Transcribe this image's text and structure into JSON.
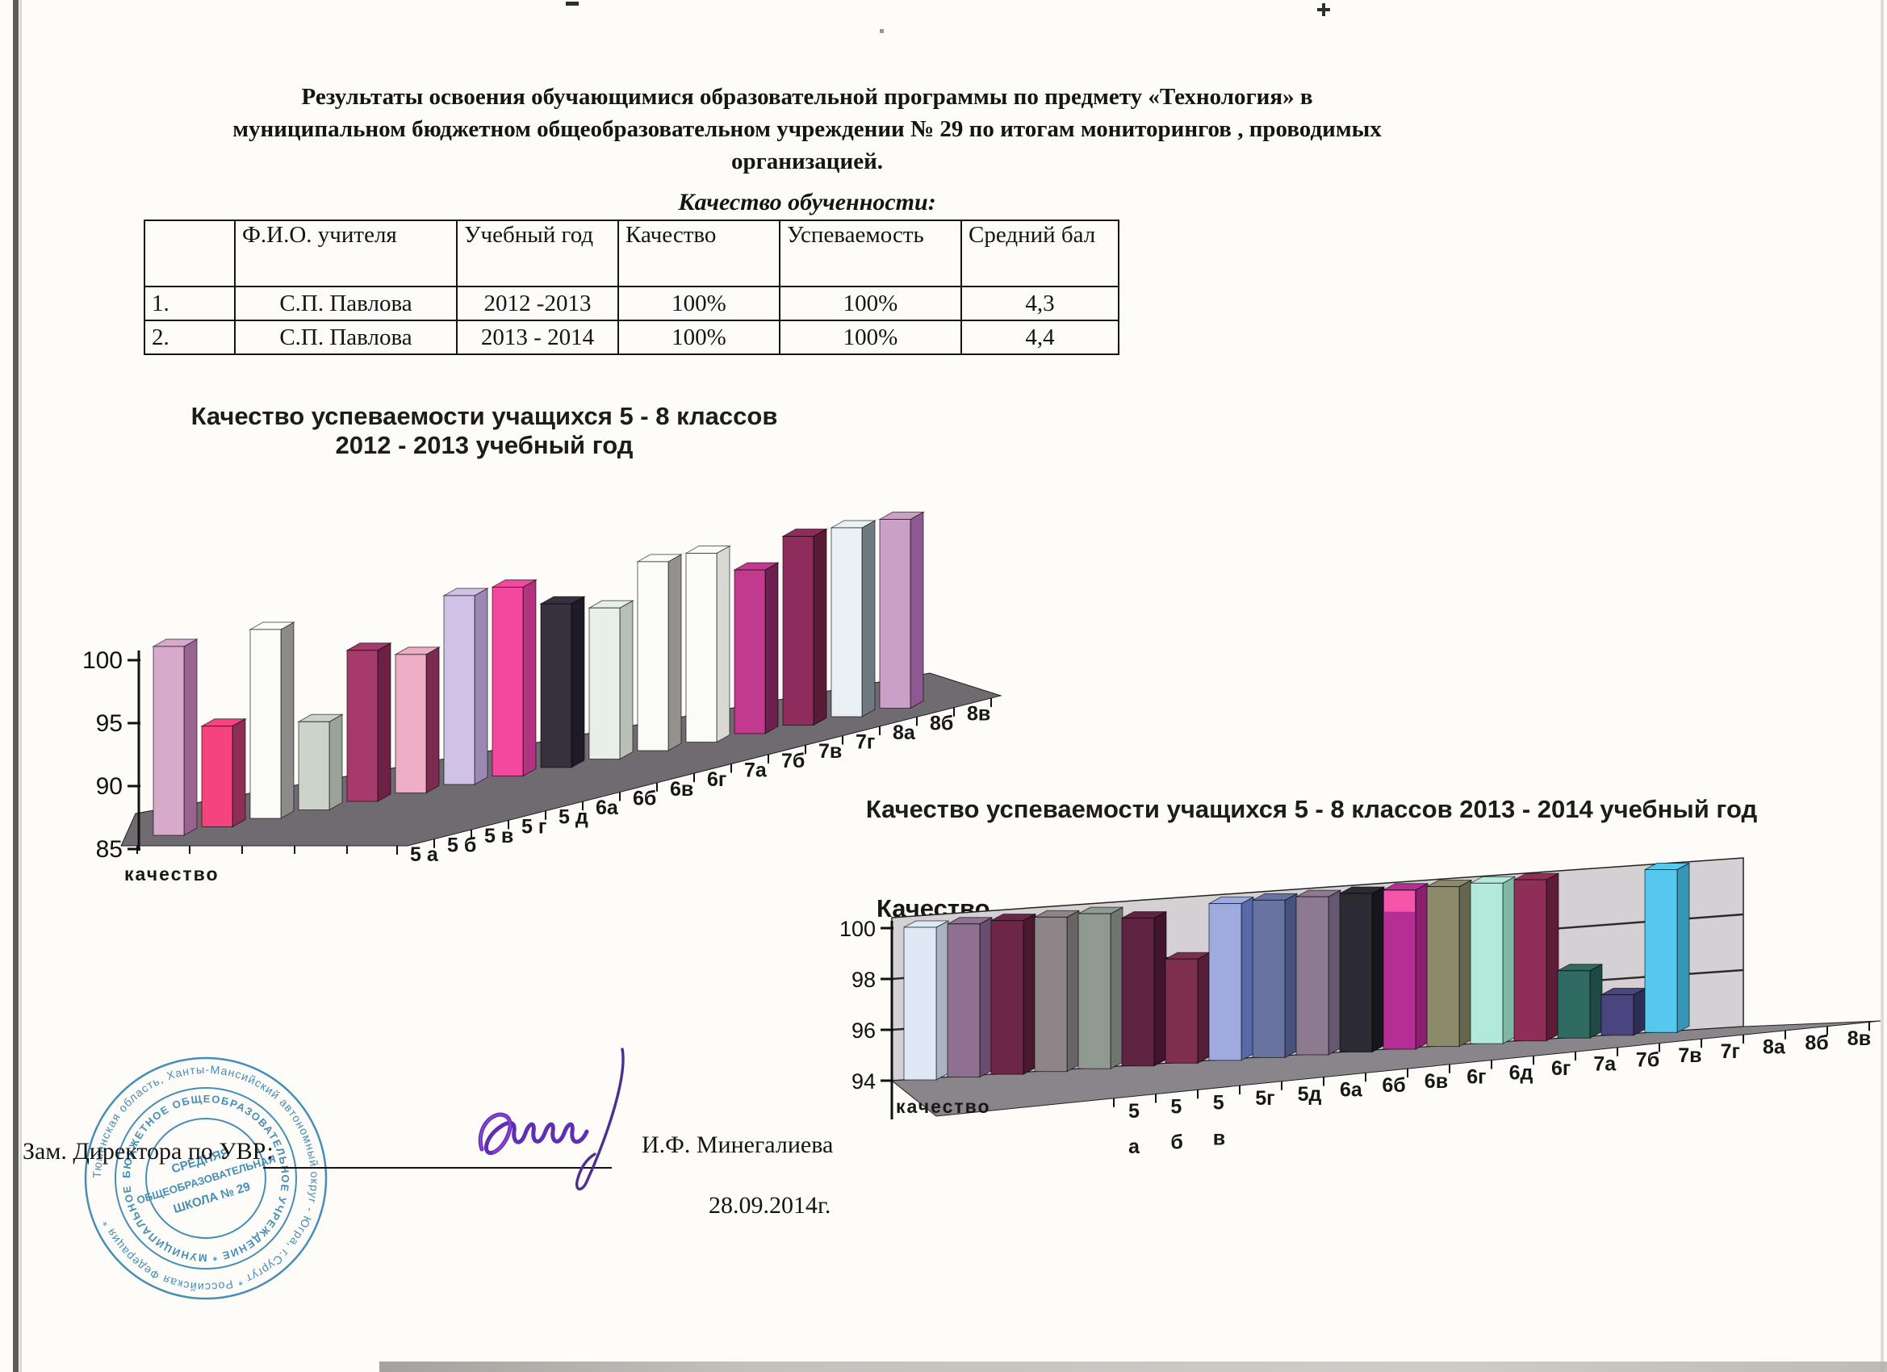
{
  "document": {
    "title_lines": [
      "Результаты освоения обучающимися образовательной программы по предмету  «Технология» в",
      "муниципальном бюджетном общеобразовательном учреждении № 29 по итогам мониторингов , проводимых",
      "организацией."
    ],
    "subtitle": "Качество обученности:"
  },
  "table": {
    "headers": [
      "",
      "Ф.И.О. учителя",
      "Учебный год",
      "Качество",
      "Успеваемость",
      "Средний бал"
    ],
    "rows": [
      [
        "1.",
        "С.П. Павлова",
        "2012 -2013",
        "100%",
        "100%",
        "4,3"
      ],
      [
        "2.",
        "С.П. Павлова",
        "2013 - 2014",
        "100%",
        "100%",
        "4,4"
      ]
    ]
  },
  "chart_data": [
    {
      "type": "bar",
      "view": "3d",
      "title_lines": [
        "Качество успеваемости учащихся 5 - 8 классов",
        "2012 - 2013 учебный год"
      ],
      "value_axis_label": "качество",
      "series_label": "Качество",
      "categories": [
        "5 а",
        "5 б",
        "5 в",
        "5 г",
        "5 д",
        "6а",
        "6б",
        "6в",
        "6г",
        "7а",
        "7б",
        "7в",
        "7г",
        "8а",
        "8б",
        "8в"
      ],
      "values": [
        100,
        93,
        100,
        92,
        97,
        96,
        100,
        100,
        98,
        97,
        100,
        100,
        98,
        100,
        100,
        100
      ],
      "ylim": [
        85,
        100
      ],
      "yticks": [
        100,
        95,
        90,
        85
      ],
      "grid": false,
      "legend": "none",
      "floor_color": "#6f6b70",
      "colors_front": [
        "#d7aacb",
        "#f4437f",
        "#fbfbf8",
        "#ccd3c8",
        "#a63a6d",
        "#eeaec5",
        "#cfc2e6",
        "#f4479e",
        "#36303f",
        "#e8eee8",
        "#fbfbf8",
        "#fbfbf8",
        "#c23a90",
        "#8e2d5d",
        "#e9f1f4",
        "#c9a0c6"
      ],
      "colors_side": [
        "#9a6490",
        "#8e2d55",
        "#8f8a8a",
        "#9aa396",
        "#6f2045",
        "#7c2a50",
        "#9b87b4",
        "#b23380",
        "#1e1a26",
        "#b6c0b6",
        "#94918c",
        "#d9d9d4",
        "#6b2050",
        "#5a1b38",
        "#6f7a80",
        "#8e5992"
      ]
    },
    {
      "type": "bar",
      "view": "3d",
      "title_lines": [
        "Качество успеваемости учащихся 5 - 8 классов 2013 - 2014 учебный год"
      ],
      "value_axis_label": "качество",
      "series_label": "",
      "categories": [
        "5|а",
        "5|б",
        "5|в",
        "5г",
        "5д",
        "6а",
        "6б",
        "6в",
        "6г",
        "6д",
        "6г",
        "7а",
        "7б",
        "7в",
        "7г",
        "8а",
        "8б",
        "8в"
      ],
      "values": [
        100,
        100,
        100,
        100,
        100,
        99.7,
        98,
        100,
        100,
        100,
        100,
        100,
        100,
        100,
        100,
        96.5,
        95.5,
        100
      ],
      "ylim": [
        94,
        100
      ],
      "yticks": [
        100,
        98,
        96,
        94
      ],
      "grid": true,
      "legend": "none",
      "floor_color": "#8a858b",
      "wall_color": "#d4d0d4",
      "top_accents": {
        "11": "#f455a8"
      },
      "colors_front": [
        "#dfe9f6",
        "#8f6f92",
        "#6d2746",
        "#8d8588",
        "#8f9a92",
        "#5f2342",
        "#7d2f4d",
        "#9fabdf",
        "#68739f",
        "#8b7a90",
        "#2c2b33",
        "#b52e93",
        "#8b8b6b",
        "#b2ead9",
        "#8f2f58",
        "#2f6b62",
        "#4a4580",
        "#56c8ee"
      ],
      "colors_side": [
        "#a9b3c1",
        "#6a4c70",
        "#4a1830",
        "#6a6466",
        "#6d7670",
        "#40152c",
        "#561e36",
        "#5868a8",
        "#47527c",
        "#665871",
        "#17161c",
        "#8c1f70",
        "#66664d",
        "#7fb8a8",
        "#5f1c38",
        "#1d4a42",
        "#302c58",
        "#3795b5"
      ]
    }
  ],
  "footer": {
    "role_label": "Зам. Директора по УВР:",
    "signer_name": "И.Ф. Минегалиева",
    "date": "28.09.2014г."
  },
  "stamp": {
    "color": "#2f7fae",
    "ring_outer_text": "Тюменская область, Ханты-Мансийский автономный округ - Югра, г.Сургут  *  Российская Федерация  *",
    "ring_inner_text": "БЮДЖЕТНОЕ  ОБЩЕОБРАЗОВАТЕЛЬНОЕ  УЧРЕЖДЕНИЕ  *  МУНИЦИПАЛЬНОЕ",
    "center_lines": [
      "СРЕДНЯЯ",
      "ОБЩЕОБРАЗОВАТЕЛЬНАЯ",
      "ШКОЛА № 29"
    ]
  }
}
